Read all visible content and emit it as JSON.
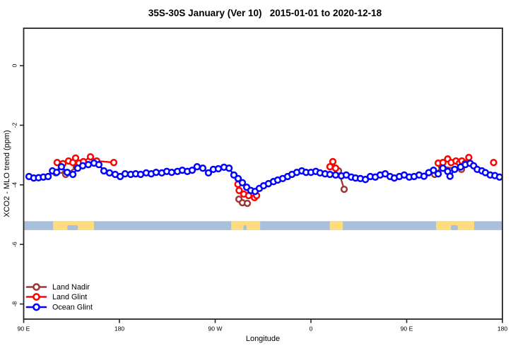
{
  "title": "35S-30S January (Ver 10)   2015-01-01 to 2020-12-18",
  "axes": {
    "x": {
      "label": "Longitude",
      "range_deg": [
        90,
        540
      ],
      "ticks": [
        {
          "pos": 90,
          "label": "90 E"
        },
        {
          "pos": 180,
          "label": "180"
        },
        {
          "pos": 270,
          "label": "90 W"
        },
        {
          "pos": 360,
          "label": "0"
        },
        {
          "pos": 450,
          "label": "90 E"
        },
        {
          "pos": 540,
          "label": "180"
        }
      ]
    },
    "y": {
      "label": "XCO2 - MLO trend (ppm)",
      "range": [
        -8.5,
        1.25
      ],
      "ticks": [
        {
          "value": 0,
          "label": "0"
        },
        {
          "value": -2,
          "label": "-2"
        },
        {
          "value": -4,
          "label": "-4"
        },
        {
          "value": -6,
          "label": "-6"
        },
        {
          "value": -8,
          "label": "-8"
        }
      ]
    }
  },
  "legend": [
    {
      "label": "Land Nadir",
      "color": "#A03434"
    },
    {
      "label": "Land Glint",
      "color": "#FF0000"
    },
    {
      "label": "Ocean Glint",
      "color": "#0000FF"
    }
  ],
  "map_band": {
    "description": "latitude strip map 35S-30S along longitude axis",
    "ocean_color": "#A9C0DD",
    "land_color": "#FFDC7E",
    "y_range_ppm": [
      -5.52,
      -5.22
    ],
    "land_patches_deg": [
      [
        117.6,
        156.1
      ],
      [
        285.0,
        312.3
      ],
      [
        377.7,
        390.0
      ],
      [
        477.6,
        513.5
      ]
    ],
    "ocean_notches_deg": [
      [
        131.0,
        141.0
      ],
      [
        296.5,
        299.5
      ],
      [
        491.5,
        498.0
      ]
    ]
  },
  "chart_data": {
    "type": "line",
    "title": "35S-30S January (Ver 10)   2015-01-01 to 2020-12-18",
    "xlabel": "Longitude",
    "ylabel": "XCO2 - MLO trend (ppm)",
    "x_unit": "degrees eastward along axis starting at 90E (wraps past 360)",
    "ylim": [
      -8.5,
      1.25
    ],
    "grid": false,
    "legend_position": "bottom-left inside plot",
    "series": [
      {
        "name": "Land Nadir",
        "color": "#A03434",
        "segments": [
          [
            [
              120.2,
              -3.6
            ],
            [
              124.9,
              -3.51
            ],
            [
              129.5,
              -3.65
            ],
            [
              139.5,
              -3.41
            ],
            [
              145.0,
              -3.29
            ]
          ],
          [
            [
              292.3,
              -4.48
            ],
            [
              295.6,
              -4.6
            ],
            [
              300.2,
              -4.62
            ]
          ],
          [
            [
              385.9,
              -3.53
            ],
            [
              391.2,
              -4.15
            ]
          ],
          [
            [
              476.3,
              -3.65
            ],
            [
              482.9,
              -3.39
            ],
            [
              501.5,
              -3.48
            ]
          ]
        ]
      },
      {
        "name": "Land Glint",
        "color": "#FF0000",
        "segments": [
          [
            [
              121.5,
              -3.25
            ],
            [
              126.9,
              -3.29
            ],
            [
              132.2,
              -3.2
            ],
            [
              136.2,
              -3.25
            ],
            [
              138.8,
              -3.1
            ],
            [
              142.1,
              -3.27
            ],
            [
              146.1,
              -3.22
            ],
            [
              152.8,
              -3.06
            ],
            [
              158.7,
              -3.2
            ],
            [
              174.7,
              -3.25
            ]
          ],
          [
            [
              291.4,
              -3.98
            ],
            [
              292.5,
              -4.19
            ],
            [
              296.9,
              -4.31
            ],
            [
              301.4,
              -4.36
            ],
            [
              306.9,
              -4.43
            ],
            [
              308.9,
              -4.36
            ]
          ],
          [
            [
              377.9,
              -3.39
            ],
            [
              380.6,
              -3.22
            ],
            [
              383.2,
              -3.44
            ]
          ],
          [
            [
              479.6,
              -3.27
            ],
            [
              484.1,
              -3.25
            ],
            [
              488.5,
              -3.13
            ],
            [
              491.8,
              -3.25
            ],
            [
              496.3,
              -3.2
            ],
            [
              499.6,
              -3.27
            ],
            [
              501.8,
              -3.2
            ],
            [
              505.1,
              -3.27
            ],
            [
              508.4,
              -3.08
            ]
          ],
          [
            [
              531.7,
              -3.25
            ]
          ]
        ]
      },
      {
        "name": "Ocean Glint",
        "color": "#0000FF",
        "segments": [
          [
            [
              95.0,
              -3.72
            ],
            [
              99.5,
              -3.77
            ],
            [
              104.0,
              -3.76
            ],
            [
              108.5,
              -3.74
            ],
            [
              113.0,
              -3.72
            ],
            [
              117.0,
              -3.53
            ],
            [
              121.0,
              -3.58
            ],
            [
              125.5,
              -3.39
            ],
            [
              130.9,
              -3.58
            ],
            [
              136.2,
              -3.65
            ],
            [
              140.8,
              -3.44
            ],
            [
              145.5,
              -3.36
            ],
            [
              150.8,
              -3.32
            ],
            [
              156.1,
              -3.27
            ],
            [
              160.7,
              -3.32
            ],
            [
              165.4,
              -3.53
            ],
            [
              170.7,
              -3.6
            ],
            [
              176.0,
              -3.65
            ],
            [
              180.7,
              -3.72
            ],
            [
              185.3,
              -3.63
            ],
            [
              190.6,
              -3.65
            ],
            [
              195.3,
              -3.63
            ],
            [
              199.9,
              -3.65
            ],
            [
              205.2,
              -3.6
            ],
            [
              209.9,
              -3.63
            ],
            [
              214.5,
              -3.58
            ],
            [
              219.8,
              -3.6
            ],
            [
              224.5,
              -3.55
            ],
            [
              229.1,
              -3.58
            ],
            [
              234.5,
              -3.55
            ],
            [
              239.1,
              -3.51
            ],
            [
              243.8,
              -3.55
            ],
            [
              248.4,
              -3.51
            ],
            [
              253.0,
              -3.39
            ],
            [
              258.4,
              -3.44
            ],
            [
              263.7,
              -3.6
            ],
            [
              268.3,
              -3.48
            ],
            [
              273.0,
              -3.46
            ],
            [
              278.3,
              -3.41
            ],
            [
              283.0,
              -3.44
            ],
            [
              287.6,
              -3.67
            ],
            [
              291.6,
              -3.79
            ],
            [
              295.6,
              -3.93
            ],
            [
              299.6,
              -4.08
            ],
            [
              303.5,
              -4.19
            ],
            [
              307.5,
              -4.22
            ],
            [
              311.5,
              -4.12
            ],
            [
              315.5,
              -4.03
            ],
            [
              320.1,
              -3.96
            ],
            [
              324.8,
              -3.89
            ],
            [
              328.8,
              -3.84
            ],
            [
              333.4,
              -3.79
            ],
            [
              338.1,
              -3.72
            ],
            [
              342.1,
              -3.65
            ],
            [
              346.7,
              -3.58
            ],
            [
              351.4,
              -3.53
            ],
            [
              355.4,
              -3.58
            ],
            [
              360.0,
              -3.58
            ],
            [
              364.6,
              -3.55
            ],
            [
              368.6,
              -3.6
            ],
            [
              373.3,
              -3.63
            ],
            [
              377.9,
              -3.65
            ],
            [
              383.2,
              -3.67
            ],
            [
              388.6,
              -3.7
            ],
            [
              393.2,
              -3.67
            ],
            [
              397.9,
              -3.74
            ],
            [
              401.9,
              -3.77
            ],
            [
              406.5,
              -3.79
            ],
            [
              411.2,
              -3.82
            ],
            [
              415.8,
              -3.72
            ],
            [
              420.5,
              -3.74
            ],
            [
              425.1,
              -3.67
            ],
            [
              429.8,
              -3.63
            ],
            [
              434.4,
              -3.72
            ],
            [
              438.4,
              -3.77
            ],
            [
              443.1,
              -3.72
            ],
            [
              447.7,
              -3.67
            ],
            [
              452.4,
              -3.74
            ],
            [
              457.0,
              -3.72
            ],
            [
              461.7,
              -3.67
            ],
            [
              466.3,
              -3.71
            ],
            [
              470.7,
              -3.59
            ],
            [
              475.2,
              -3.51
            ],
            [
              479.6,
              -3.63
            ],
            [
              484.0,
              -3.44
            ],
            [
              488.5,
              -3.55
            ],
            [
              490.7,
              -3.71
            ],
            [
              495.1,
              -3.48
            ],
            [
              500.7,
              -3.4
            ],
            [
              505.1,
              -3.32
            ],
            [
              509.6,
              -3.28
            ],
            [
              512.9,
              -3.36
            ],
            [
              516.3,
              -3.48
            ],
            [
              520.7,
              -3.53
            ],
            [
              524.0,
              -3.59
            ],
            [
              528.5,
              -3.67
            ],
            [
              532.9,
              -3.69
            ],
            [
              537.3,
              -3.74
            ]
          ]
        ]
      }
    ]
  }
}
